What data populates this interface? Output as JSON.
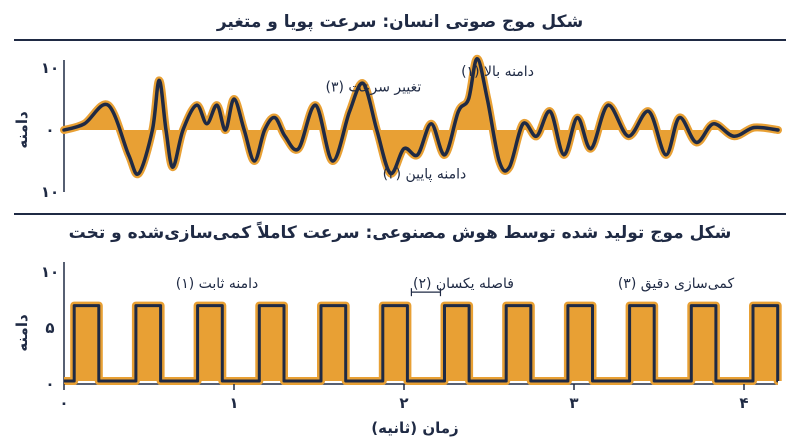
{
  "colors": {
    "navy": "#1f2a44",
    "orange": "#e8a034",
    "rule": "#1f2a44"
  },
  "chart_data": [
    {
      "type": "line",
      "title": "شکل موج صوتی انسان: سرعت پویا و متغیر",
      "ylabel": "دامنه",
      "ylim": [
        -10,
        10
      ],
      "yticks": [
        "۱۰",
        "۰",
        "۱۰"
      ],
      "fill": "to-zero",
      "xlim": [
        0,
        4.2
      ],
      "series": [
        {
          "x": [
            0,
            0.12,
            0.26,
            0.38,
            0.44,
            0.52,
            0.56,
            0.6,
            0.64,
            0.7,
            0.78,
            0.84,
            0.9,
            0.95,
            1.0,
            1.06,
            1.12,
            1.18,
            1.24,
            1.3,
            1.38,
            1.48,
            1.58,
            1.68,
            1.76,
            1.84,
            1.92,
            2.0,
            2.08,
            2.16,
            2.24,
            2.32,
            2.38,
            2.43,
            2.49,
            2.56,
            2.62,
            2.7,
            2.78,
            2.86,
            2.94,
            3.02,
            3.1,
            3.2,
            3.32,
            3.44,
            3.54,
            3.62,
            3.72,
            3.82,
            3.94,
            4.06,
            4.2
          ],
          "values": [
            0,
            1,
            4,
            -4,
            -7,
            0,
            8,
            0,
            -6,
            0,
            4,
            1,
            4,
            0,
            5,
            0,
            -5,
            0,
            2,
            -1,
            -3,
            4,
            -5,
            3,
            7.5,
            0,
            -7,
            -3,
            -4,
            1,
            -4,
            3,
            5,
            11.5,
            5,
            -5,
            -6,
            1,
            -1,
            3,
            -4,
            2,
            -3,
            4,
            -1,
            3,
            -4,
            2,
            -2,
            1,
            -1,
            0.4,
            0
          ],
          "name": ""
        }
      ],
      "annotations": [
        {
          "text": "دامنه بالا (۱)",
          "at": [
            2.55,
            9.5
          ]
        },
        {
          "text": "تغییر سرعت (۳)",
          "at": [
            1.82,
            7
          ]
        },
        {
          "text": "دامنه پایین (۲)",
          "at": [
            2.12,
            -7
          ]
        }
      ]
    },
    {
      "type": "line",
      "title": "شکل موج تولید شده توسط هوش مصنوعی: سرعت کاملاً کمی‌سازی‌شده و تخت",
      "ylabel": "دامنه",
      "xlabel": "زمان (ثانیه)",
      "ylim": [
        0,
        10
      ],
      "yticks": [
        "۰",
        "۵",
        "۱۰"
      ],
      "xticks": [
        {
          "v": 0,
          "label": "۰"
        },
        {
          "v": 1,
          "label": "۱"
        },
        {
          "v": 2,
          "label": "۲"
        },
        {
          "v": 3,
          "label": "۳"
        },
        {
          "v": 4,
          "label": "۴"
        }
      ],
      "xlim": [
        0,
        4.2
      ],
      "waveform": "square",
      "high": 7,
      "low": 0,
      "period": 0.363,
      "pulse_width": 0.145,
      "pulse_count": 12,
      "first_pulse_start": 0.06,
      "annotations": [
        {
          "text": "دامنه ثابت (۱)",
          "at": [
            0.9,
            9
          ]
        },
        {
          "text": "فاصله یکسان (۲)",
          "at": [
            2.35,
            9
          ]
        },
        {
          "text": "کمی‌سازی دقیق (۳)",
          "at": [
            3.6,
            9
          ]
        }
      ]
    }
  ]
}
